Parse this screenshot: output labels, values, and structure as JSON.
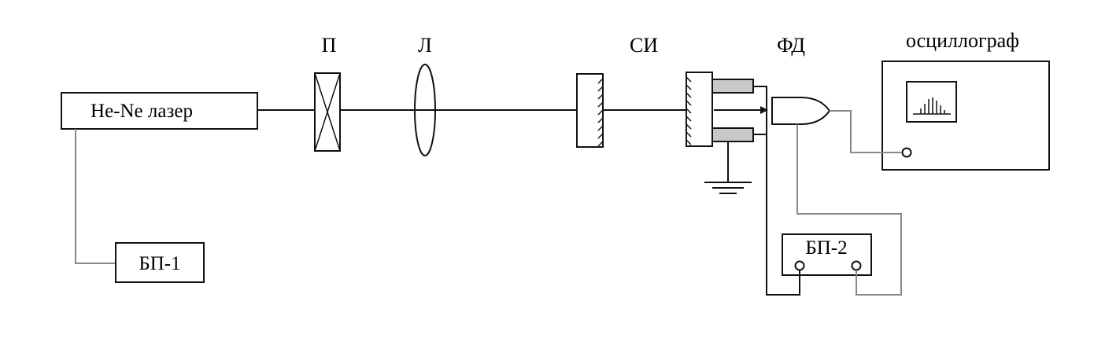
{
  "labels": {
    "laser": "He-Ne лазер",
    "polarizer": "П",
    "lens": "Л",
    "interferometer": "СИ",
    "photodiode": "ФД",
    "oscilloscope": "осциллограф",
    "power_supply_1": "БП-1",
    "power_supply_2": "БП-2"
  },
  "colors": {
    "stroke": "#111111",
    "wire_gray": "#888888",
    "piezo_fill": "#c8c8c8"
  }
}
